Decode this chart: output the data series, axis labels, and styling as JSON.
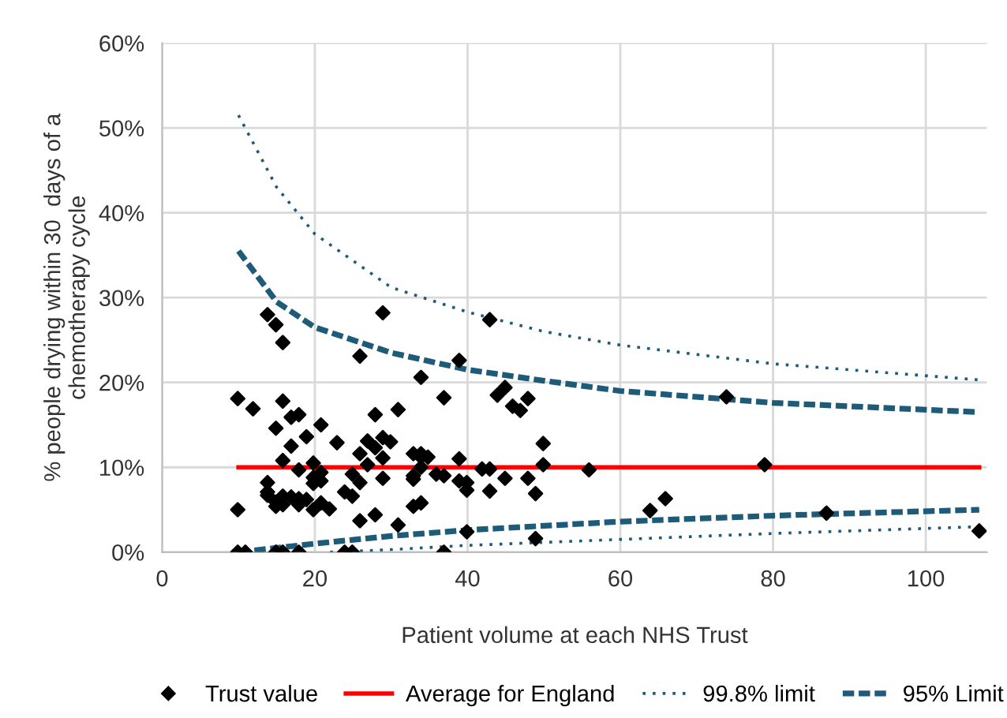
{
  "chart_data": {
    "type": "scatter",
    "xlabel": "Patient volume at each NHS Trust",
    "ylabel": "% people drying within 30  days of a\nchemotherapy cycle",
    "xlim": [
      0,
      108
    ],
    "ylim": [
      0,
      60
    ],
    "xticks": [
      0,
      20,
      40,
      60,
      80,
      100
    ],
    "yticks": [
      {
        "value": 0,
        "label": "0%"
      },
      {
        "value": 10,
        "label": "10%"
      },
      {
        "value": 20,
        "label": "20%"
      },
      {
        "value": 30,
        "label": "30%"
      },
      {
        "value": 40,
        "label": "40%"
      },
      {
        "value": 50,
        "label": "50%"
      },
      {
        "value": 60,
        "label": "60%"
      }
    ],
    "grid": true,
    "legend": "bottom",
    "series": [
      {
        "name": "Trust value",
        "marker": "diamond",
        "color": "#000000",
        "x": [
          13.8,
          14.9,
          15.8,
          28.9,
          25.9,
          9.9,
          11.9,
          15.8,
          16.9,
          17.9,
          14.9,
          20.8,
          18.9,
          16.9,
          22.9,
          15.8,
          17.9,
          19.8,
          20.8,
          19.8,
          19.8,
          20.8,
          13.8,
          13.8,
          13.8,
          14.9,
          14.9,
          15.8,
          15.8,
          16.9,
          17.9,
          17.9,
          18.9,
          19.8,
          20.8,
          21.9,
          9.9,
          23.9,
          24.9,
          24.9,
          25.9,
          25.9,
          26.9,
          27.9,
          28.9,
          29.9,
          26.9,
          28.9,
          28.9,
          27.9,
          30.9,
          25.9,
          27.9,
          30.9,
          9.9,
          10.9,
          14.9,
          15.8,
          17.9,
          23.9,
          24.9,
          42.9,
          38.9,
          33.9,
          36.9,
          43.9,
          44.9,
          45.9,
          46.9,
          47.9,
          32.9,
          33.9,
          33.9,
          34.8,
          32.9,
          32.9,
          33.9,
          35.9,
          36.9,
          38.9,
          38.9,
          39.9,
          39.9,
          41.9,
          42.9,
          42.9,
          44.9,
          47.9,
          48.9,
          49.9,
          49.9,
          55.9,
          32.9,
          33.9,
          39.9,
          48.9,
          36.9,
          73.9,
          78.9,
          65.9,
          63.9,
          87.0,
          107.0
        ],
        "values": [
          28.0,
          26.8,
          24.7,
          28.2,
          23.1,
          18.1,
          16.9,
          17.8,
          15.9,
          16.2,
          14.6,
          15.0,
          13.6,
          12.5,
          12.9,
          10.8,
          9.7,
          10.5,
          9.4,
          8.8,
          8.1,
          8.4,
          8.2,
          7.1,
          6.7,
          5.9,
          5.4,
          6.6,
          5.6,
          6.5,
          6.3,
          5.6,
          6.2,
          5.0,
          5.8,
          5.1,
          5.0,
          7.1,
          6.6,
          9.2,
          8.2,
          11.6,
          13.1,
          12.3,
          13.5,
          13.0,
          10.3,
          11.1,
          8.7,
          16.2,
          16.8,
          3.7,
          4.4,
          3.2,
          0,
          0,
          0,
          0,
          0,
          0,
          0,
          27.4,
          22.6,
          20.6,
          18.2,
          18.5,
          19.4,
          17.2,
          16.7,
          18.1,
          11.6,
          11.6,
          11.2,
          11.2,
          9.0,
          8.6,
          10.0,
          9.2,
          9.0,
          11.0,
          8.4,
          8.2,
          7.3,
          9.8,
          9.8,
          7.2,
          8.7,
          8.7,
          6.9,
          12.8,
          10.3,
          9.7,
          5.4,
          5.8,
          2.4,
          1.6,
          0,
          18.3,
          10.3,
          6.3,
          4.9,
          4.6,
          2.5
        ]
      },
      {
        "name": "Average for England",
        "type": "line",
        "line_style": "solid",
        "color": "#ff0000",
        "x": [
          10,
          107
        ],
        "values": [
          10.0,
          10.0
        ]
      },
      {
        "name": "99.8% limit",
        "type": "line",
        "line_style": "dotted",
        "color": "#1d5b79",
        "x": [
          10,
          15,
          20,
          30,
          40,
          50,
          60,
          80,
          107
        ],
        "values": [
          51.5,
          43,
          37.5,
          31.2,
          28.3,
          26,
          24.4,
          22.2,
          20.3
        ]
      },
      {
        "type": "line",
        "line_style": "dotted",
        "color": "#1d5b79",
        "x": [
          22,
          30,
          40,
          60,
          80,
          107
        ],
        "values": [
          0,
          0.3,
          0.8,
          1.5,
          2.2,
          3.0
        ]
      },
      {
        "name": "95% Limit",
        "type": "line",
        "line_style": "dashed",
        "color": "#1d5b79",
        "x": [
          10,
          15,
          20,
          30,
          40,
          50,
          60,
          80,
          107
        ],
        "values": [
          35.5,
          29.5,
          26.5,
          23.5,
          21.5,
          20.2,
          19.0,
          17.6,
          16.5
        ]
      },
      {
        "type": "line",
        "line_style": "dashed",
        "color": "#1d5b79",
        "x": [
          10,
          15,
          20,
          30,
          40,
          60,
          80,
          107
        ],
        "values": [
          0,
          0.5,
          1.0,
          1.9,
          2.6,
          3.6,
          4.3,
          5.0
        ]
      }
    ]
  }
}
